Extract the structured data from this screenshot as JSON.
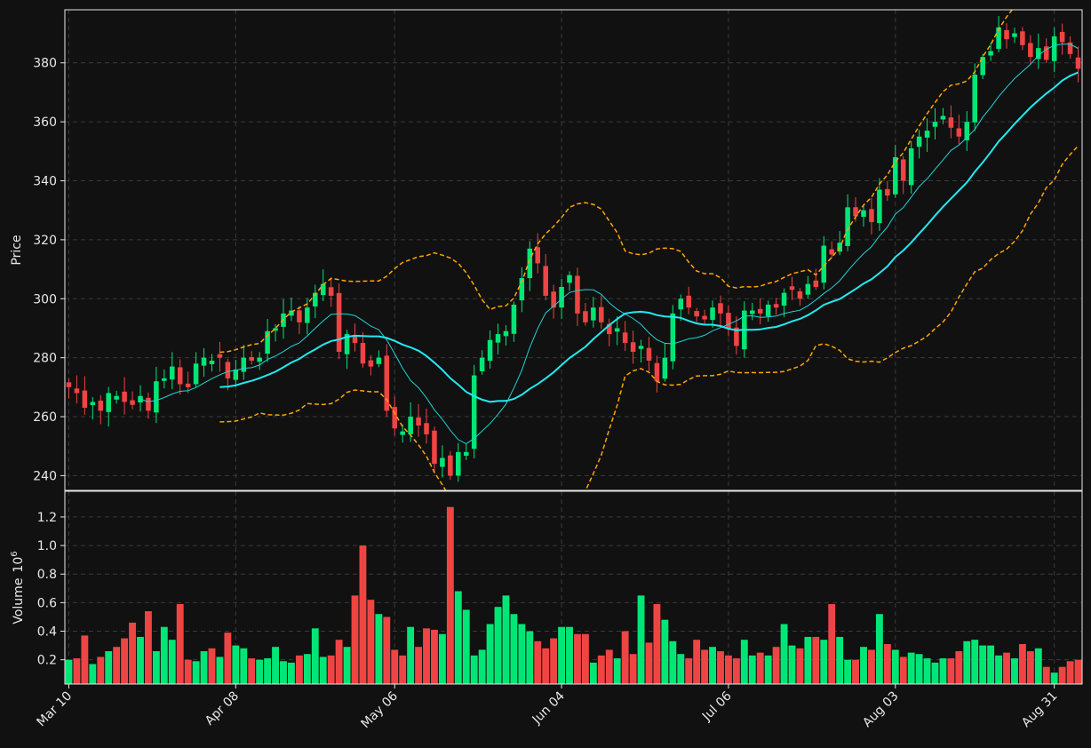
{
  "chart_data": {
    "type": "candlestick",
    "date_start": "Mar 10",
    "price_axis": {
      "label": "Price",
      "ticks": [
        240,
        260,
        280,
        300,
        320,
        340,
        360,
        380
      ],
      "ylim": [
        235,
        398
      ]
    },
    "volume_axis": {
      "label": "Volume",
      "multiplier_label": "10",
      "multiplier_exp": "6",
      "ticks": [
        0.2,
        0.4,
        0.6,
        0.8,
        1.0,
        1.2
      ],
      "tick_labels": [
        "0.2",
        "0.4",
        "0.6",
        "0.8",
        "1.0",
        "1.2"
      ],
      "ylim": [
        0.03,
        1.38
      ]
    },
    "x_tick_labels": [
      {
        "label": "Mar 10",
        "index": 0
      },
      {
        "label": "Apr 08",
        "index": 21
      },
      {
        "label": "May 06",
        "index": 41
      },
      {
        "label": "Jun 04",
        "index": 62
      },
      {
        "label": "Jul 06",
        "index": 83
      },
      {
        "label": "Aug 03",
        "index": 104
      },
      {
        "label": "Aug 31",
        "index": 124
      }
    ],
    "grid": true,
    "colors": {
      "up": "#00e676",
      "down": "#ef4444",
      "ma_fast": "#22d3d8",
      "ma_slow": "#22eaf2",
      "bands": "#ffa500",
      "background": "#111111",
      "text": "#e8e8e8"
    },
    "overlays": [
      "fast moving average",
      "slow moving average",
      "upper band",
      "lower band"
    ],
    "ohlc_close_keys": [
      270,
      268,
      263,
      265,
      262,
      268,
      267,
      265,
      264,
      267,
      262,
      272,
      273,
      277,
      271,
      270,
      278,
      280,
      279,
      280,
      273,
      276,
      280,
      279,
      280,
      289,
      290,
      295,
      296,
      292,
      297,
      302,
      305,
      301,
      282,
      288,
      285,
      278,
      277,
      280,
      262,
      256,
      255,
      260,
      257,
      254,
      244,
      246,
      240,
      248,
      248,
      274,
      280,
      286,
      288,
      289,
      298,
      307,
      317,
      312,
      301,
      297,
      304,
      308,
      295,
      292,
      297,
      292,
      288,
      290,
      285,
      282,
      284,
      279,
      272,
      280,
      295,
      300,
      297,
      294,
      293,
      297,
      295,
      290,
      284,
      296,
      296,
      295,
      298,
      297,
      302,
      303,
      300,
      305,
      304,
      318,
      315,
      319,
      331,
      328,
      330,
      326,
      337,
      335,
      348,
      340,
      351,
      355,
      357,
      360,
      362,
      358,
      355,
      360,
      376,
      382,
      384,
      392,
      388,
      390,
      386,
      382,
      385,
      381,
      389,
      387,
      383,
      378
    ],
    "volume_millions": [
      0.2,
      0.21,
      0.37,
      0.17,
      0.22,
      0.26,
      0.29,
      0.35,
      0.46,
      0.36,
      0.54,
      0.26,
      0.43,
      0.34,
      0.59,
      0.2,
      0.19,
      0.26,
      0.28,
      0.22,
      0.39,
      0.3,
      0.28,
      0.21,
      0.2,
      0.21,
      0.29,
      0.19,
      0.18,
      0.23,
      0.24,
      0.42,
      0.22,
      0.23,
      0.34,
      0.29,
      0.65,
      1.0,
      0.62,
      0.52,
      0.5,
      0.27,
      0.23,
      0.43,
      0.29,
      0.42,
      0.41,
      0.38,
      1.27,
      0.68,
      0.55,
      0.23,
      0.27,
      0.45,
      0.57,
      0.65,
      0.52,
      0.45,
      0.4,
      0.33,
      0.28,
      0.35,
      0.43,
      0.43,
      0.38,
      0.38,
      0.18,
      0.23,
      0.27,
      0.21,
      0.4,
      0.24,
      0.65,
      0.32,
      0.59,
      0.48,
      0.33,
      0.24,
      0.21,
      0.34,
      0.27,
      0.29,
      0.26,
      0.23,
      0.21,
      0.34,
      0.23,
      0.25,
      0.23,
      0.29,
      0.45,
      0.3,
      0.28,
      0.36,
      0.36,
      0.34,
      0.59,
      0.36,
      0.2,
      0.2,
      0.29,
      0.27,
      0.52,
      0.31,
      0.27,
      0.22,
      0.25,
      0.24,
      0.21,
      0.18,
      0.21,
      0.21,
      0.26,
      0.33,
      0.34,
      0.3,
      0.3,
      0.23,
      0.25,
      0.21,
      0.31,
      0.26,
      0.28,
      0.15,
      0.11,
      0.15,
      0.19,
      0.2
    ]
  }
}
